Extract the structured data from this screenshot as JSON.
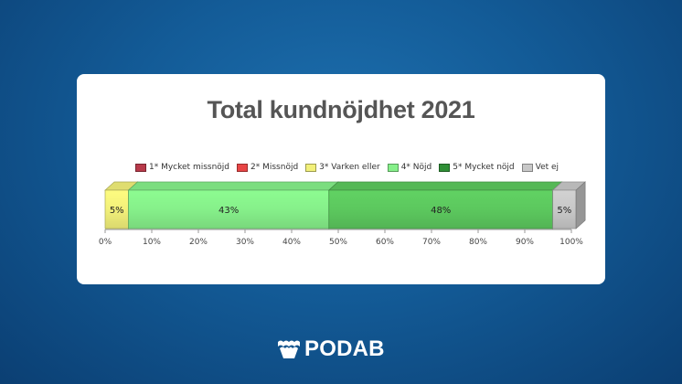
{
  "chart_data": {
    "type": "bar",
    "orientation": "horizontal-stacked",
    "title": "Total kundnöjdhet 2021",
    "legend_position": "top",
    "series": [
      {
        "name": "1* Mycket missnöjd",
        "value": 0,
        "color": "#b83a4a"
      },
      {
        "name": "2* Missnöjd",
        "value": 0,
        "color": "#e84545"
      },
      {
        "name": "3* Varken eller",
        "value": 5,
        "color": "#f2f07a"
      },
      {
        "name": "4* Nöjd",
        "value": 43,
        "color": "#86f08a"
      },
      {
        "name": "5* Mycket nöjd",
        "value": 48,
        "color": "#5cc85e"
      },
      {
        "name": "Vet ej",
        "value": 5,
        "color": "#c8c8c8"
      }
    ],
    "data_labels": [
      "5%",
      "43%",
      "48%",
      "5%"
    ],
    "xlim": [
      0,
      100
    ],
    "x_ticks": [
      "0%",
      "10%",
      "20%",
      "30%",
      "40%",
      "50%",
      "60%",
      "70%",
      "80%",
      "90%",
      "100%"
    ]
  },
  "brand": {
    "name": "PODAB",
    "logo_icon": "podab-wave-icon"
  }
}
